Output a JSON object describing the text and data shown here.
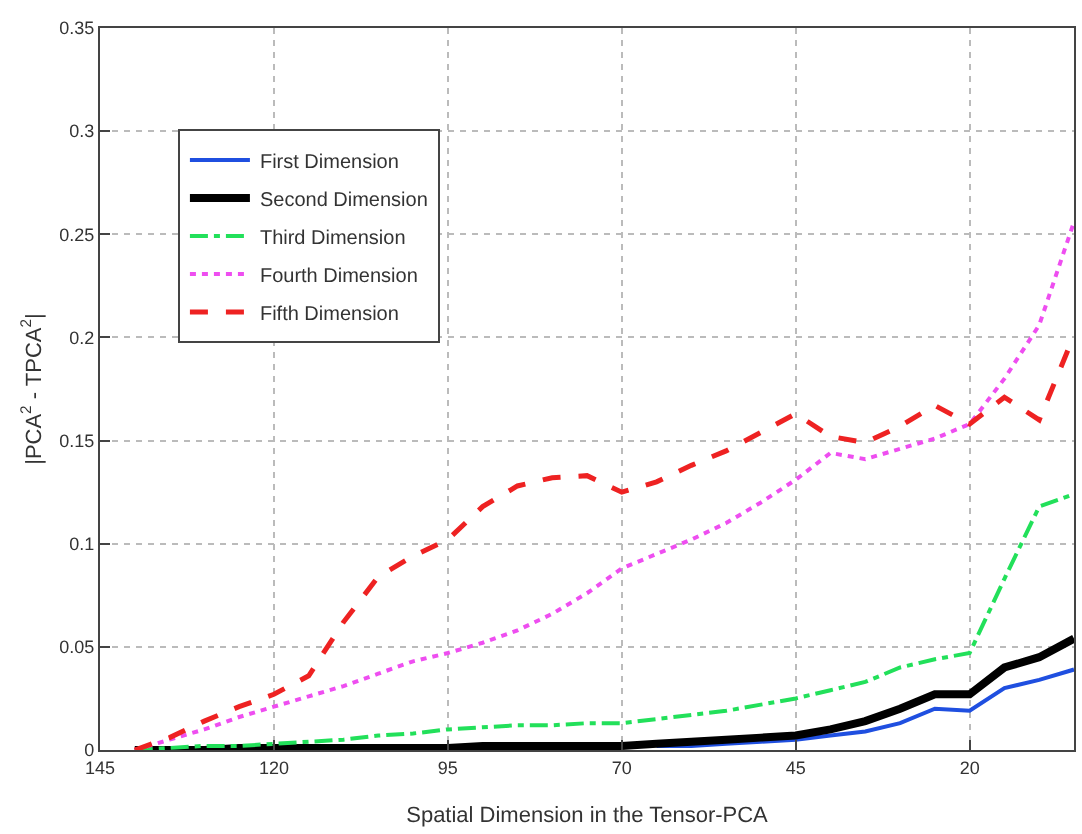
{
  "chart_data": {
    "type": "line",
    "xlabel": "Spatial Dimension in the Tensor-PCA",
    "ylabel": "|PCA$^{2}$ - TPCA$^{2}$|",
    "x": [
      140,
      135,
      130,
      125,
      120,
      115,
      110,
      105,
      100,
      95,
      90,
      85,
      80,
      75,
      70,
      65,
      60,
      55,
      50,
      45,
      40,
      35,
      30,
      25,
      20,
      15,
      10,
      5
    ],
    "series": [
      {
        "name": "First Dimension",
        "color": "#1f4fe0",
        "line_style": "solid",
        "values": [
          null,
          null,
          null,
          null,
          null,
          null,
          null,
          null,
          null,
          null,
          null,
          null,
          null,
          null,
          null,
          0.002,
          0.002,
          0.003,
          0.004,
          0.005,
          0.007,
          0.009,
          0.013,
          0.02,
          0.019,
          0.03,
          0.034,
          0.039
        ]
      },
      {
        "name": "Second Dimension",
        "color": "#000000",
        "line_style": "solid",
        "values": [
          0,
          0,
          0,
          0.001,
          0.001,
          0.001,
          0.001,
          0.001,
          0.001,
          0.001,
          0.002,
          0.002,
          0.002,
          0.002,
          0.002,
          0.003,
          0.004,
          0.005,
          0.006,
          0.007,
          0.01,
          0.014,
          0.02,
          0.027,
          0.027,
          0.04,
          0.045,
          0.054
        ]
      },
      {
        "name": "Third Dimension",
        "color": "#22e05a",
        "line_style": "dashdot",
        "values": [
          0,
          0.001,
          0.002,
          0.002,
          0.003,
          0.004,
          0.005,
          0.007,
          0.008,
          0.01,
          0.011,
          0.012,
          0.012,
          0.013,
          0.013,
          0.015,
          0.017,
          0.019,
          0.022,
          0.025,
          0.029,
          0.033,
          0.04,
          0.044,
          0.047,
          0.083,
          0.118,
          0.124
        ]
      },
      {
        "name": "Fourth Dimension",
        "color": "#ee4ef0",
        "line_style": "dotted",
        "values": [
          0,
          0.005,
          0.01,
          0.016,
          0.021,
          0.026,
          0.031,
          0.037,
          0.043,
          0.047,
          0.052,
          0.058,
          0.066,
          0.076,
          0.088,
          0.095,
          0.102,
          0.11,
          0.12,
          0.131,
          0.144,
          0.141,
          0.146,
          0.151,
          0.158,
          0.18,
          0.206,
          0.256
        ]
      },
      {
        "name": "Fifth Dimension",
        "color": "#ee2222",
        "line_style": "dashed",
        "values": [
          0,
          0.006,
          0.014,
          0.021,
          0.027,
          0.036,
          0.062,
          0.084,
          0.094,
          0.102,
          0.118,
          0.128,
          0.132,
          0.133,
          0.125,
          0.13,
          0.138,
          0.145,
          0.154,
          0.163,
          0.152,
          0.149,
          0.157,
          0.167,
          0.158,
          0.171,
          0.16,
          0.201
        ]
      }
    ],
    "xlim": [
      145,
      5
    ],
    "xticks": [
      145,
      120,
      95,
      70,
      45,
      20
    ],
    "ylim": [
      0,
      0.35
    ],
    "yticks": [
      0,
      0.05,
      0.1,
      0.15,
      0.2,
      0.25,
      0.3,
      0.35
    ],
    "grid": true,
    "legend": "top left"
  }
}
